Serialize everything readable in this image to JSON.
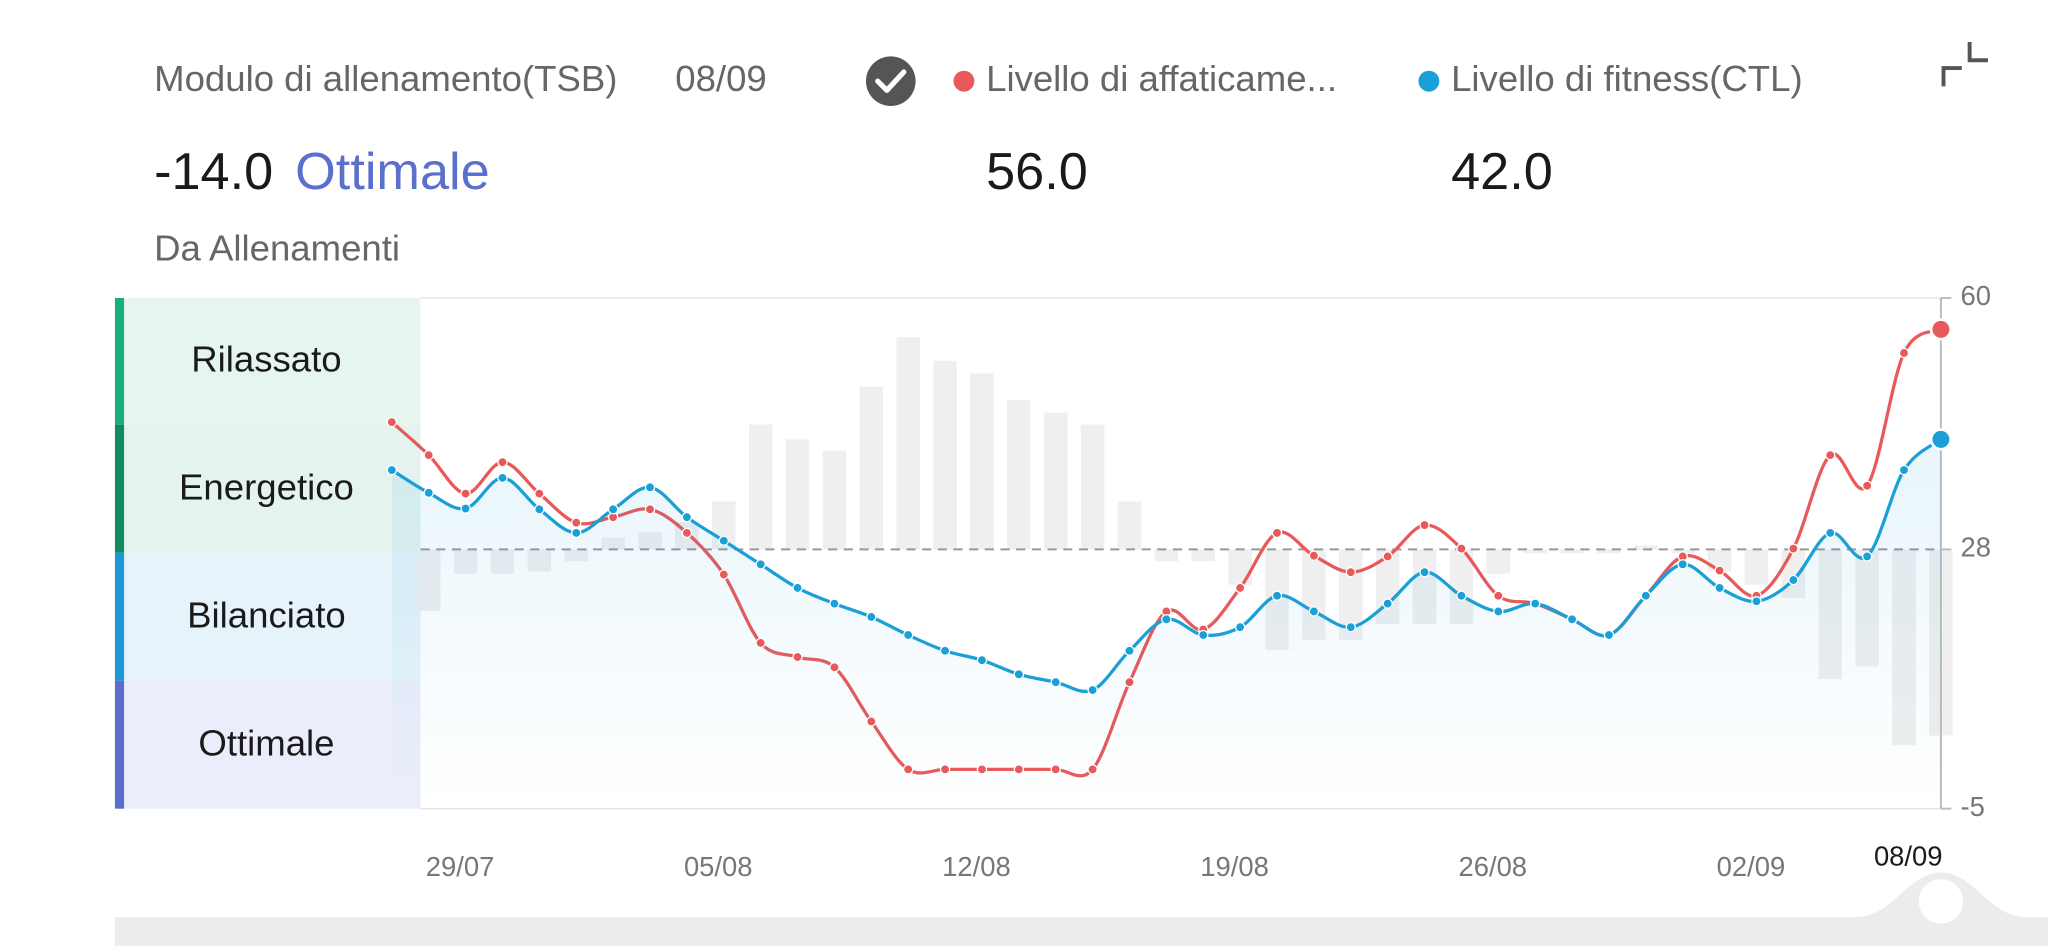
{
  "header": {
    "title": "Modulo di allenamento(TSB)",
    "date": "08/09",
    "tsb": "-14.0",
    "status": "Ottimale",
    "source": "Da Allenamenti",
    "fatigue": "56.0",
    "fitness": "42.0"
  },
  "chart_data": {
    "type": "line",
    "zones": [
      "Rilassato",
      "Energetico",
      "Bilanciato",
      "Ottimale"
    ],
    "categories": [
      null,
      "29/07",
      null,
      null,
      null,
      null,
      null,
      null,
      "05/08",
      null,
      null,
      null,
      null,
      null,
      null,
      "12/08",
      null,
      null,
      null,
      null,
      null,
      null,
      "19/08",
      null,
      null,
      null,
      null,
      null,
      null,
      "26/08",
      null,
      null,
      null,
      null,
      null,
      null,
      "02/09",
      null,
      null,
      null,
      null,
      null,
      "08/09"
    ],
    "series": [
      {
        "name": "Livello di affaticame...",
        "color": "#e8595a",
        "values": [
          44.2,
          40.0,
          35.1,
          39.1,
          35.1,
          31.4,
          32.1,
          33.1,
          30.1,
          24.8,
          16.1,
          14.3,
          13.0,
          6.1,
          0,
          0,
          0,
          0,
          0,
          0,
          11.1,
          20.1,
          17.8,
          23.1,
          30.1,
          27.2,
          25.1,
          27.1,
          31.1,
          28.1,
          22.1,
          21.1,
          19.1,
          17.1,
          22.1,
          27.1,
          25.3,
          22.1,
          28.1,
          40.0,
          36.1,
          53.0,
          56.0
        ]
      },
      {
        "name": "Livello di fitness(CTL)",
        "color": "#1a9fd6",
        "values": [
          38.1,
          35.2,
          33.2,
          37.1,
          33.1,
          30.1,
          33.1,
          35.9,
          32.1,
          29.1,
          26.1,
          23.1,
          21.1,
          19.4,
          17.1,
          15.1,
          13.9,
          12.1,
          11.1,
          10.1,
          15.1,
          19.1,
          17.1,
          18.1,
          22.1,
          20.1,
          18.1,
          21.1,
          25.1,
          22.1,
          20.1,
          21.1,
          19.1,
          17.1,
          22.1,
          26.1,
          23.1,
          21.4,
          24.1,
          30.1,
          27.1,
          38.1,
          42.0
        ]
      }
    ],
    "bars": {
      "color": "#efefef",
      "values": [
        null,
        20.2,
        24.9,
        24.9,
        25.2,
        26.5,
        29.5,
        30.2,
        31.5,
        34.1,
        43.9,
        42.0,
        40.6,
        48.7,
        55,
        52,
        50.4,
        47,
        45.4,
        43.9,
        34.1,
        26.5,
        26.5,
        23.5,
        15.2,
        16.5,
        16.5,
        18.5,
        18.5,
        18.5,
        24.9,
        27.5,
        27.5,
        27.5,
        28.5,
        27.5,
        25.2,
        23.5,
        21.8,
        11.5,
        13.1,
        3.1,
        4.3
      ]
    },
    "baseline": 28,
    "ylim": [
      -5,
      60
    ],
    "yticks": [
      -5,
      28,
      60
    ]
  }
}
